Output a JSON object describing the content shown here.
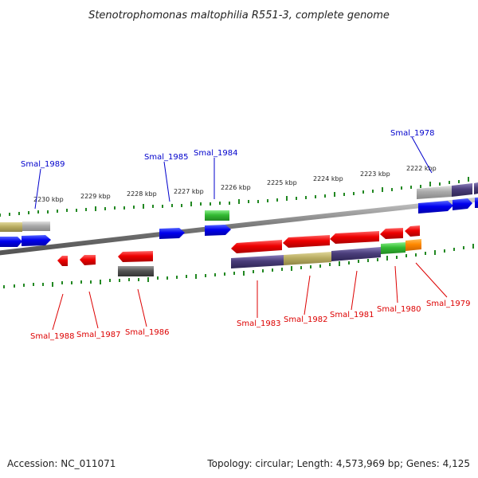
{
  "title": "Stenotrophomonas maltophilia R551-3, complete genome",
  "footer": {
    "accession": "Accession: NC_011071",
    "info": "Topology: circular; Length: 4,573,969 bp; Genes: 4,125"
  },
  "scale_labels": [
    "2230 kbp",
    "2229 kbp",
    "2228 kbp",
    "2227 kbp",
    "2226 kbp",
    "2225 kbp",
    "2224 kbp",
    "2223 kbp",
    "2222 kbp"
  ],
  "gene_labels_top": [
    "Smal_1989",
    "Smal_1985",
    "Smal_1984",
    "Smal_1978"
  ],
  "gene_labels_bottom": [
    "Smal_1988",
    "Smal_1987",
    "Smal_1986",
    "Smal_1983",
    "Smal_1982",
    "Smal_1981",
    "Smal_1980",
    "Smal_1979"
  ],
  "colors": {
    "forward_label": "#0000cc",
    "reverse_label": "#dd0000",
    "gene_red": "#ee0000",
    "gene_blue": "#0000ee",
    "gene_green": "#33bb33",
    "gene_orange": "#ff8800",
    "gene_gray": "#999999",
    "gene_dark_gray": "#555555",
    "gene_indigo": "#4a3d7a",
    "gene_khaki": "#b9ad62",
    "tick_green": "#228822",
    "backbone": "#777777"
  }
}
